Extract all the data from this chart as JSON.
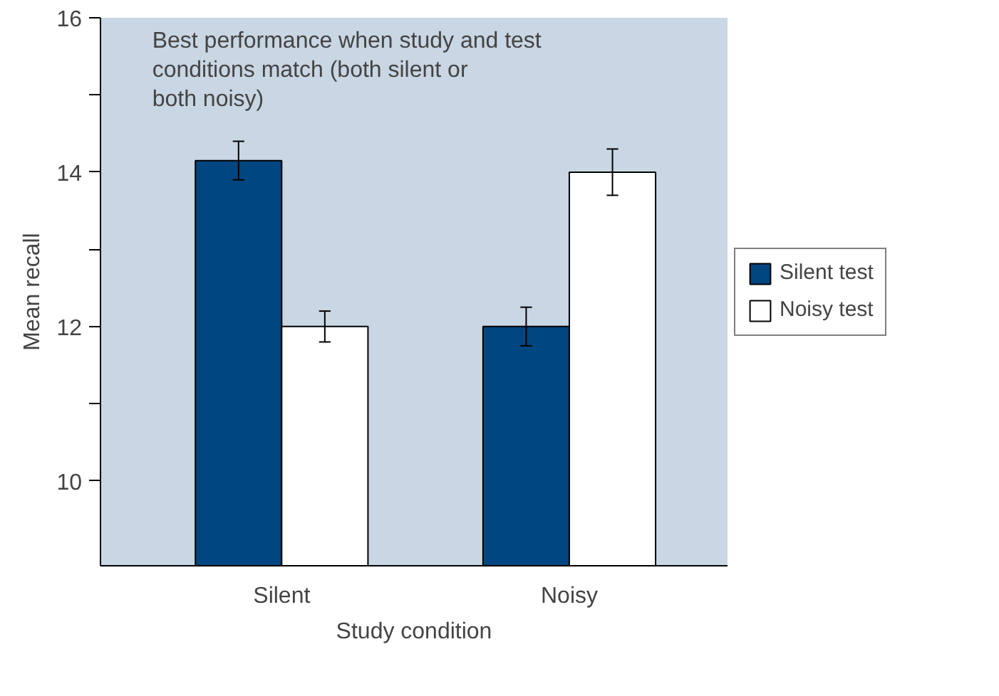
{
  "chart_data": {
    "type": "bar",
    "xlabel": "Study condition",
    "ylabel": "Mean recall",
    "categories": [
      "Silent",
      "Noisy"
    ],
    "series": [
      {
        "name": "Silent test",
        "color": "#004680",
        "values": [
          14.15,
          12.0
        ],
        "errors": [
          0.25,
          0.25
        ]
      },
      {
        "name": "Noisy test",
        "color": "#ffffff",
        "values": [
          12.0,
          14.0
        ],
        "errors": [
          0.2,
          0.3
        ]
      }
    ],
    "ylim": [
      8.9,
      16
    ],
    "yticks": [
      {
        "value": 10,
        "label": "10"
      },
      {
        "value": 11,
        "label": null
      },
      {
        "value": 12,
        "label": "12"
      },
      {
        "value": 13,
        "label": null
      },
      {
        "value": 14,
        "label": "14"
      },
      {
        "value": 15,
        "label": null
      },
      {
        "value": 16,
        "label": "16"
      }
    ],
    "annotations": [
      "Best performance when study and test conditions match (both silent or both noisy)"
    ],
    "grid": false,
    "legend": "right"
  }
}
